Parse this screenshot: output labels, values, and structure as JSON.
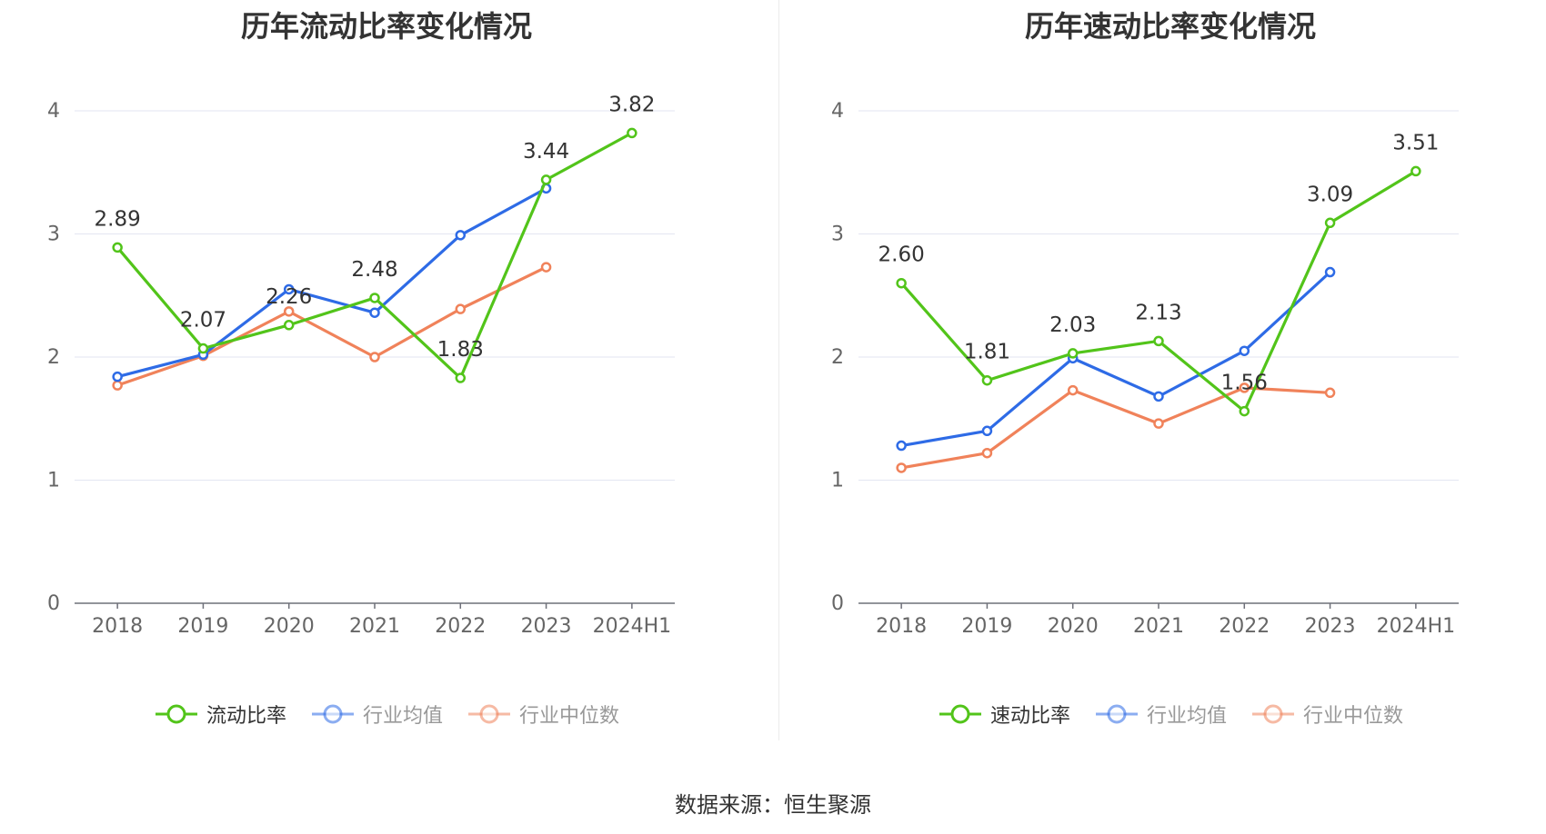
{
  "source": "数据来源：恒生聚源",
  "colors": {
    "main": "#52c41a",
    "avg": "#2e6be6",
    "median": "#f0825a"
  },
  "chart_data": [
    {
      "type": "line",
      "title": "历年流动比率变化情况",
      "categories": [
        "2018",
        "2019",
        "2020",
        "2021",
        "2022",
        "2023",
        "2024H1"
      ],
      "ylim": [
        0,
        4
      ],
      "yticks": [
        0,
        1,
        2,
        3,
        4
      ],
      "legend_position": "bottom-center",
      "series": [
        {
          "name": "流动比率",
          "key": "main",
          "values": [
            2.89,
            2.07,
            2.26,
            2.48,
            1.83,
            3.44,
            3.82
          ],
          "labels": [
            "2.89",
            "2.07",
            "2.26",
            "2.48",
            "1.83",
            "3.44",
            "3.82"
          ]
        },
        {
          "name": "行业均值",
          "key": "avg",
          "values": [
            1.84,
            2.02,
            2.55,
            2.36,
            2.99,
            3.37,
            null
          ]
        },
        {
          "name": "行业中位数",
          "key": "median",
          "values": [
            1.77,
            2.01,
            2.37,
            2.0,
            2.39,
            2.73,
            null
          ]
        }
      ]
    },
    {
      "type": "line",
      "title": "历年速动比率变化情况",
      "categories": [
        "2018",
        "2019",
        "2020",
        "2021",
        "2022",
        "2023",
        "2024H1"
      ],
      "ylim": [
        0,
        4
      ],
      "yticks": [
        0,
        1,
        2,
        3,
        4
      ],
      "legend_position": "bottom-center",
      "series": [
        {
          "name": "速动比率",
          "key": "main",
          "values": [
            2.6,
            1.81,
            2.03,
            2.13,
            1.56,
            3.09,
            3.51
          ],
          "labels": [
            "2.60",
            "1.81",
            "2.03",
            "2.13",
            "1.56",
            "3.09",
            "3.51"
          ]
        },
        {
          "name": "行业均值",
          "key": "avg",
          "values": [
            1.28,
            1.4,
            1.99,
            1.68,
            2.05,
            2.69,
            null
          ]
        },
        {
          "name": "行业中位数",
          "key": "median",
          "values": [
            1.1,
            1.22,
            1.73,
            1.46,
            1.75,
            1.71,
            null
          ]
        }
      ]
    }
  ]
}
